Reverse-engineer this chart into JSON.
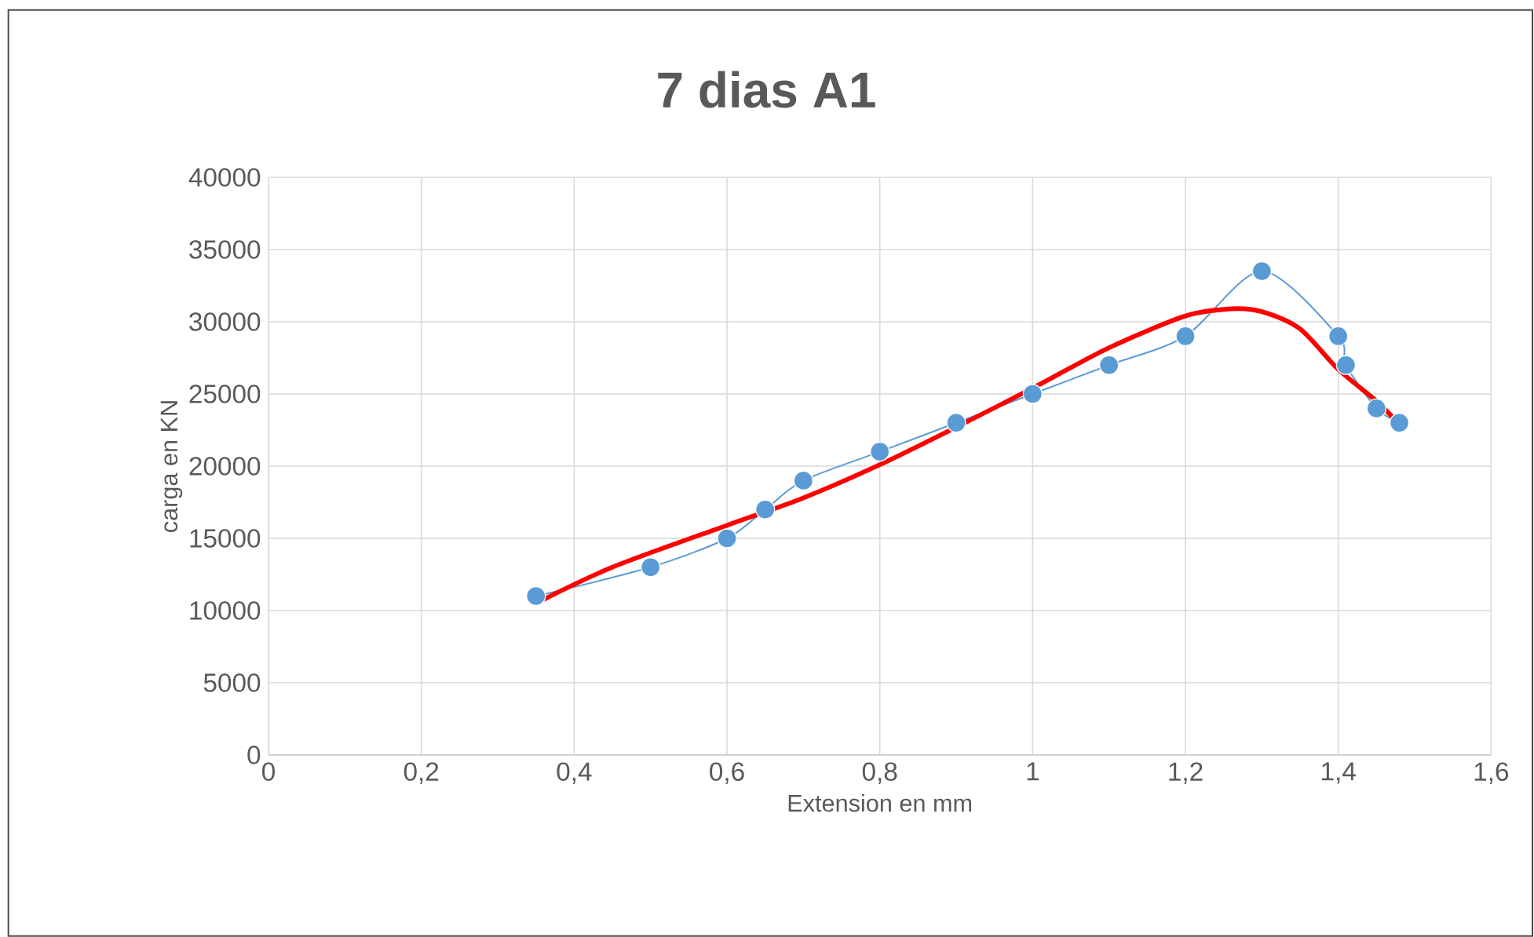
{
  "chart_data": {
    "type": "line",
    "title": "7 dias A1",
    "xlabel": "Extension en mm",
    "ylabel": "carga en KN",
    "xlim": [
      0,
      1.6
    ],
    "xticks": [
      0,
      {
        "value": 0.2,
        "label": "0,2"
      },
      {
        "value": 0.4,
        "label": "0,4"
      },
      {
        "value": 0.6,
        "label": "0,6"
      },
      {
        "value": 0.8,
        "label": "0,8"
      },
      1,
      {
        "value": 1.2,
        "label": "1,2"
      },
      {
        "value": 1.4,
        "label": "1,4"
      },
      {
        "value": 1.6,
        "label": "1,6"
      }
    ],
    "ylim": [
      0,
      40000
    ],
    "yticks": [
      0,
      5000,
      10000,
      15000,
      20000,
      25000,
      30000,
      35000,
      40000
    ],
    "grid": true,
    "series": [
      {
        "color": "#5b9bd5",
        "marker": "circle",
        "x": [
          0.35,
          0.5,
          0.6,
          0.65,
          0.7,
          0.8,
          0.9,
          1.0,
          1.1,
          1.2,
          1.3,
          1.4,
          1.41,
          1.45,
          1.48
        ],
        "values": [
          11000,
          13000,
          15000,
          17000,
          19000,
          21000,
          23000,
          25000,
          27000,
          29000,
          33500,
          29000,
          27000,
          24000,
          23000
        ]
      },
      {
        "color": "#ff0000",
        "marker": "none",
        "x": [
          0.35,
          0.45,
          0.6,
          0.7,
          0.8,
          0.9,
          1.0,
          1.1,
          1.2,
          1.26,
          1.3,
          1.35,
          1.4,
          1.45,
          1.48
        ],
        "values": [
          10500,
          13000,
          15900,
          17800,
          20100,
          22700,
          25400,
          28200,
          30400,
          30900,
          30700,
          29500,
          26700,
          24500,
          22900
        ]
      }
    ]
  }
}
